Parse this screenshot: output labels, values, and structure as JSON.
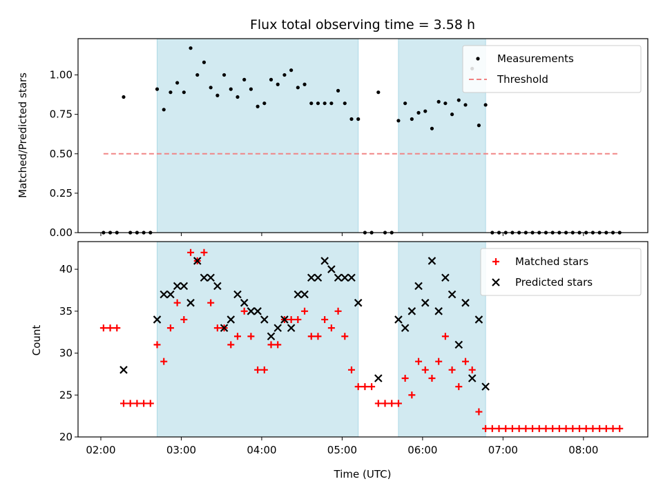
{
  "chart_data": [
    {
      "type": "scatter",
      "title": "Flux total observing time = 3.58 h",
      "ylabel": "Matched/Predicted stars",
      "xlim": [
        "01:43",
        "08:48"
      ],
      "ylim": [
        0,
        1.23
      ],
      "yticks": [
        0.0,
        0.25,
        0.5,
        0.75,
        1.0
      ],
      "ytick_labels": [
        "0.00",
        "0.25",
        "0.50",
        "0.75",
        "1.00"
      ],
      "shaded_intervals": [
        [
          "02:42",
          "05:12"
        ],
        [
          "05:42",
          "06:47"
        ]
      ],
      "legend": {
        "placement": "upper right",
        "entries": [
          "Measurements",
          "Threshold"
        ]
      },
      "series": [
        {
          "name": "Measurements",
          "marker": "dot",
          "color": "#000000",
          "points": [
            [
              "02:02",
              0
            ],
            [
              "02:07",
              0
            ],
            [
              "02:12",
              0
            ],
            [
              "02:17",
              0.86
            ],
            [
              "02:22",
              0
            ],
            [
              "02:27",
              0
            ],
            [
              "02:32",
              0
            ],
            [
              "02:37",
              0
            ],
            [
              "02:42",
              0.91
            ],
            [
              "02:47",
              0.78
            ],
            [
              "02:52",
              0.89
            ],
            [
              "02:57",
              0.95
            ],
            [
              "03:02",
              0.89
            ],
            [
              "03:07",
              1.17
            ],
            [
              "03:12",
              1.0
            ],
            [
              "03:17",
              1.08
            ],
            [
              "03:22",
              0.92
            ],
            [
              "03:27",
              0.87
            ],
            [
              "03:32",
              1.0
            ],
            [
              "03:37",
              0.91
            ],
            [
              "03:42",
              0.86
            ],
            [
              "03:47",
              0.97
            ],
            [
              "03:52",
              0.91
            ],
            [
              "03:57",
              0.8
            ],
            [
              "04:02",
              0.82
            ],
            [
              "04:07",
              0.97
            ],
            [
              "04:12",
              0.94
            ],
            [
              "04:17",
              1.0
            ],
            [
              "04:22",
              1.03
            ],
            [
              "04:27",
              0.92
            ],
            [
              "04:32",
              0.94
            ],
            [
              "04:37",
              0.82
            ],
            [
              "04:42",
              0.82
            ],
            [
              "04:47",
              0.82
            ],
            [
              "04:52",
              0.82
            ],
            [
              "04:57",
              0.9
            ],
            [
              "05:02",
              0.82
            ],
            [
              "05:07",
              0.72
            ],
            [
              "05:12",
              0.72
            ],
            [
              "05:17",
              0
            ],
            [
              "05:22",
              0
            ],
            [
              "05:27",
              0.89
            ],
            [
              "05:32",
              0
            ],
            [
              "05:37",
              0
            ],
            [
              "05:42",
              0.71
            ],
            [
              "05:47",
              0.82
            ],
            [
              "05:52",
              0.72
            ],
            [
              "05:57",
              0.76
            ],
            [
              "06:02",
              0.77
            ],
            [
              "06:07",
              0.66
            ],
            [
              "06:12",
              0.83
            ],
            [
              "06:17",
              0.82
            ],
            [
              "06:22",
              0.75
            ],
            [
              "06:27",
              0.84
            ],
            [
              "06:32",
              0.81
            ],
            [
              "06:37",
              1.04
            ],
            [
              "06:42",
              0.68
            ],
            [
              "06:47",
              0.81
            ],
            [
              "06:52",
              0
            ],
            [
              "06:57",
              0
            ],
            [
              "07:02",
              0
            ],
            [
              "07:07",
              0
            ],
            [
              "07:12",
              0
            ],
            [
              "07:17",
              0
            ],
            [
              "07:22",
              0
            ],
            [
              "07:27",
              0
            ],
            [
              "07:32",
              0
            ],
            [
              "07:37",
              0
            ],
            [
              "07:42",
              0
            ],
            [
              "07:47",
              0
            ],
            [
              "07:52",
              0
            ],
            [
              "07:57",
              0
            ],
            [
              "08:02",
              0
            ],
            [
              "08:07",
              0
            ],
            [
              "08:12",
              0
            ],
            [
              "08:17",
              0
            ],
            [
              "08:22",
              0
            ],
            [
              "08:27",
              0
            ]
          ]
        },
        {
          "name": "Threshold",
          "type": "line",
          "style": "dashed",
          "color": "#f08080",
          "points": [
            [
              "02:02",
              0.5
            ],
            [
              "08:27",
              0.5
            ]
          ]
        }
      ]
    },
    {
      "type": "scatter",
      "xlabel": "Time (UTC)",
      "ylabel": "Count",
      "xlim": [
        "01:43",
        "08:48"
      ],
      "ylim": [
        20,
        43.3
      ],
      "yticks": [
        20,
        25,
        30,
        35,
        40
      ],
      "xticks": [
        "02:00",
        "03:00",
        "04:00",
        "05:00",
        "06:00",
        "07:00",
        "08:00"
      ],
      "shaded_intervals": [
        [
          "02:42",
          "05:12"
        ],
        [
          "05:42",
          "06:47"
        ]
      ],
      "legend": {
        "placement": "upper right",
        "entries": [
          "Matched stars",
          "Predicted stars"
        ]
      },
      "series": [
        {
          "name": "Matched stars",
          "marker": "plus",
          "color": "#ff0000",
          "points": [
            [
              "02:02",
              33
            ],
            [
              "02:07",
              33
            ],
            [
              "02:12",
              33
            ],
            [
              "02:17",
              24
            ],
            [
              "02:22",
              24
            ],
            [
              "02:27",
              24
            ],
            [
              "02:32",
              24
            ],
            [
              "02:37",
              24
            ],
            [
              "02:42",
              31
            ],
            [
              "02:47",
              29
            ],
            [
              "02:52",
              33
            ],
            [
              "02:57",
              36
            ],
            [
              "03:02",
              34
            ],
            [
              "03:07",
              42
            ],
            [
              "03:12",
              41
            ],
            [
              "03:17",
              42
            ],
            [
              "03:22",
              36
            ],
            [
              "03:27",
              33
            ],
            [
              "03:32",
              33
            ],
            [
              "03:37",
              31
            ],
            [
              "03:42",
              32
            ],
            [
              "03:47",
              35
            ],
            [
              "03:52",
              32
            ],
            [
              "03:57",
              28
            ],
            [
              "04:02",
              28
            ],
            [
              "04:07",
              31
            ],
            [
              "04:12",
              31
            ],
            [
              "04:17",
              34
            ],
            [
              "04:22",
              34
            ],
            [
              "04:27",
              34
            ],
            [
              "04:32",
              35
            ],
            [
              "04:37",
              32
            ],
            [
              "04:42",
              32
            ],
            [
              "04:47",
              34
            ],
            [
              "04:52",
              33
            ],
            [
              "04:57",
              35
            ],
            [
              "05:02",
              32
            ],
            [
              "05:07",
              28
            ],
            [
              "05:12",
              26
            ],
            [
              "05:17",
              26
            ],
            [
              "05:22",
              26
            ],
            [
              "05:27",
              24
            ],
            [
              "05:32",
              24
            ],
            [
              "05:37",
              24
            ],
            [
              "05:42",
              24
            ],
            [
              "05:47",
              27
            ],
            [
              "05:52",
              25
            ],
            [
              "05:57",
              29
            ],
            [
              "06:02",
              28
            ],
            [
              "06:07",
              27
            ],
            [
              "06:12",
              29
            ],
            [
              "06:17",
              32
            ],
            [
              "06:22",
              28
            ],
            [
              "06:27",
              26
            ],
            [
              "06:32",
              29
            ],
            [
              "06:37",
              28
            ],
            [
              "06:42",
              23
            ],
            [
              "06:47",
              21
            ],
            [
              "06:52",
              21
            ],
            [
              "06:57",
              21
            ],
            [
              "07:02",
              21
            ],
            [
              "07:07",
              21
            ],
            [
              "07:12",
              21
            ],
            [
              "07:17",
              21
            ],
            [
              "07:22",
              21
            ],
            [
              "07:27",
              21
            ],
            [
              "07:32",
              21
            ],
            [
              "07:37",
              21
            ],
            [
              "07:42",
              21
            ],
            [
              "07:47",
              21
            ],
            [
              "07:52",
              21
            ],
            [
              "07:57",
              21
            ],
            [
              "08:02",
              21
            ],
            [
              "08:07",
              21
            ],
            [
              "08:12",
              21
            ],
            [
              "08:17",
              21
            ],
            [
              "08:22",
              21
            ],
            [
              "08:27",
              21
            ]
          ]
        },
        {
          "name": "Predicted stars",
          "marker": "x",
          "color": "#000000",
          "points": [
            [
              "02:17",
              28
            ],
            [
              "02:42",
              34
            ],
            [
              "02:47",
              37
            ],
            [
              "02:52",
              37
            ],
            [
              "02:57",
              38
            ],
            [
              "03:02",
              38
            ],
            [
              "03:07",
              36
            ],
            [
              "03:12",
              41
            ],
            [
              "03:17",
              39
            ],
            [
              "03:22",
              39
            ],
            [
              "03:27",
              38
            ],
            [
              "03:32",
              33
            ],
            [
              "03:37",
              34
            ],
            [
              "03:42",
              37
            ],
            [
              "03:47",
              36
            ],
            [
              "03:52",
              35
            ],
            [
              "03:57",
              35
            ],
            [
              "04:02",
              34
            ],
            [
              "04:07",
              32
            ],
            [
              "04:12",
              33
            ],
            [
              "04:17",
              34
            ],
            [
              "04:22",
              33
            ],
            [
              "04:27",
              37
            ],
            [
              "04:32",
              37
            ],
            [
              "04:37",
              39
            ],
            [
              "04:42",
              39
            ],
            [
              "04:47",
              41
            ],
            [
              "04:52",
              40
            ],
            [
              "04:57",
              39
            ],
            [
              "05:02",
              39
            ],
            [
              "05:07",
              39
            ],
            [
              "05:12",
              36
            ],
            [
              "05:27",
              27
            ],
            [
              "05:42",
              34
            ],
            [
              "05:47",
              33
            ],
            [
              "05:52",
              35
            ],
            [
              "05:57",
              38
            ],
            [
              "06:02",
              36
            ],
            [
              "06:07",
              41
            ],
            [
              "06:12",
              35
            ],
            [
              "06:17",
              39
            ],
            [
              "06:22",
              37
            ],
            [
              "06:27",
              31
            ],
            [
              "06:32",
              36
            ],
            [
              "06:37",
              27
            ],
            [
              "06:42",
              34
            ],
            [
              "06:47",
              26
            ]
          ]
        }
      ]
    }
  ],
  "colors": {
    "shade": "#add8e6",
    "matched": "#ff0000",
    "predicted": "#000000",
    "threshold": "#f08080",
    "measurements": "#000000"
  }
}
